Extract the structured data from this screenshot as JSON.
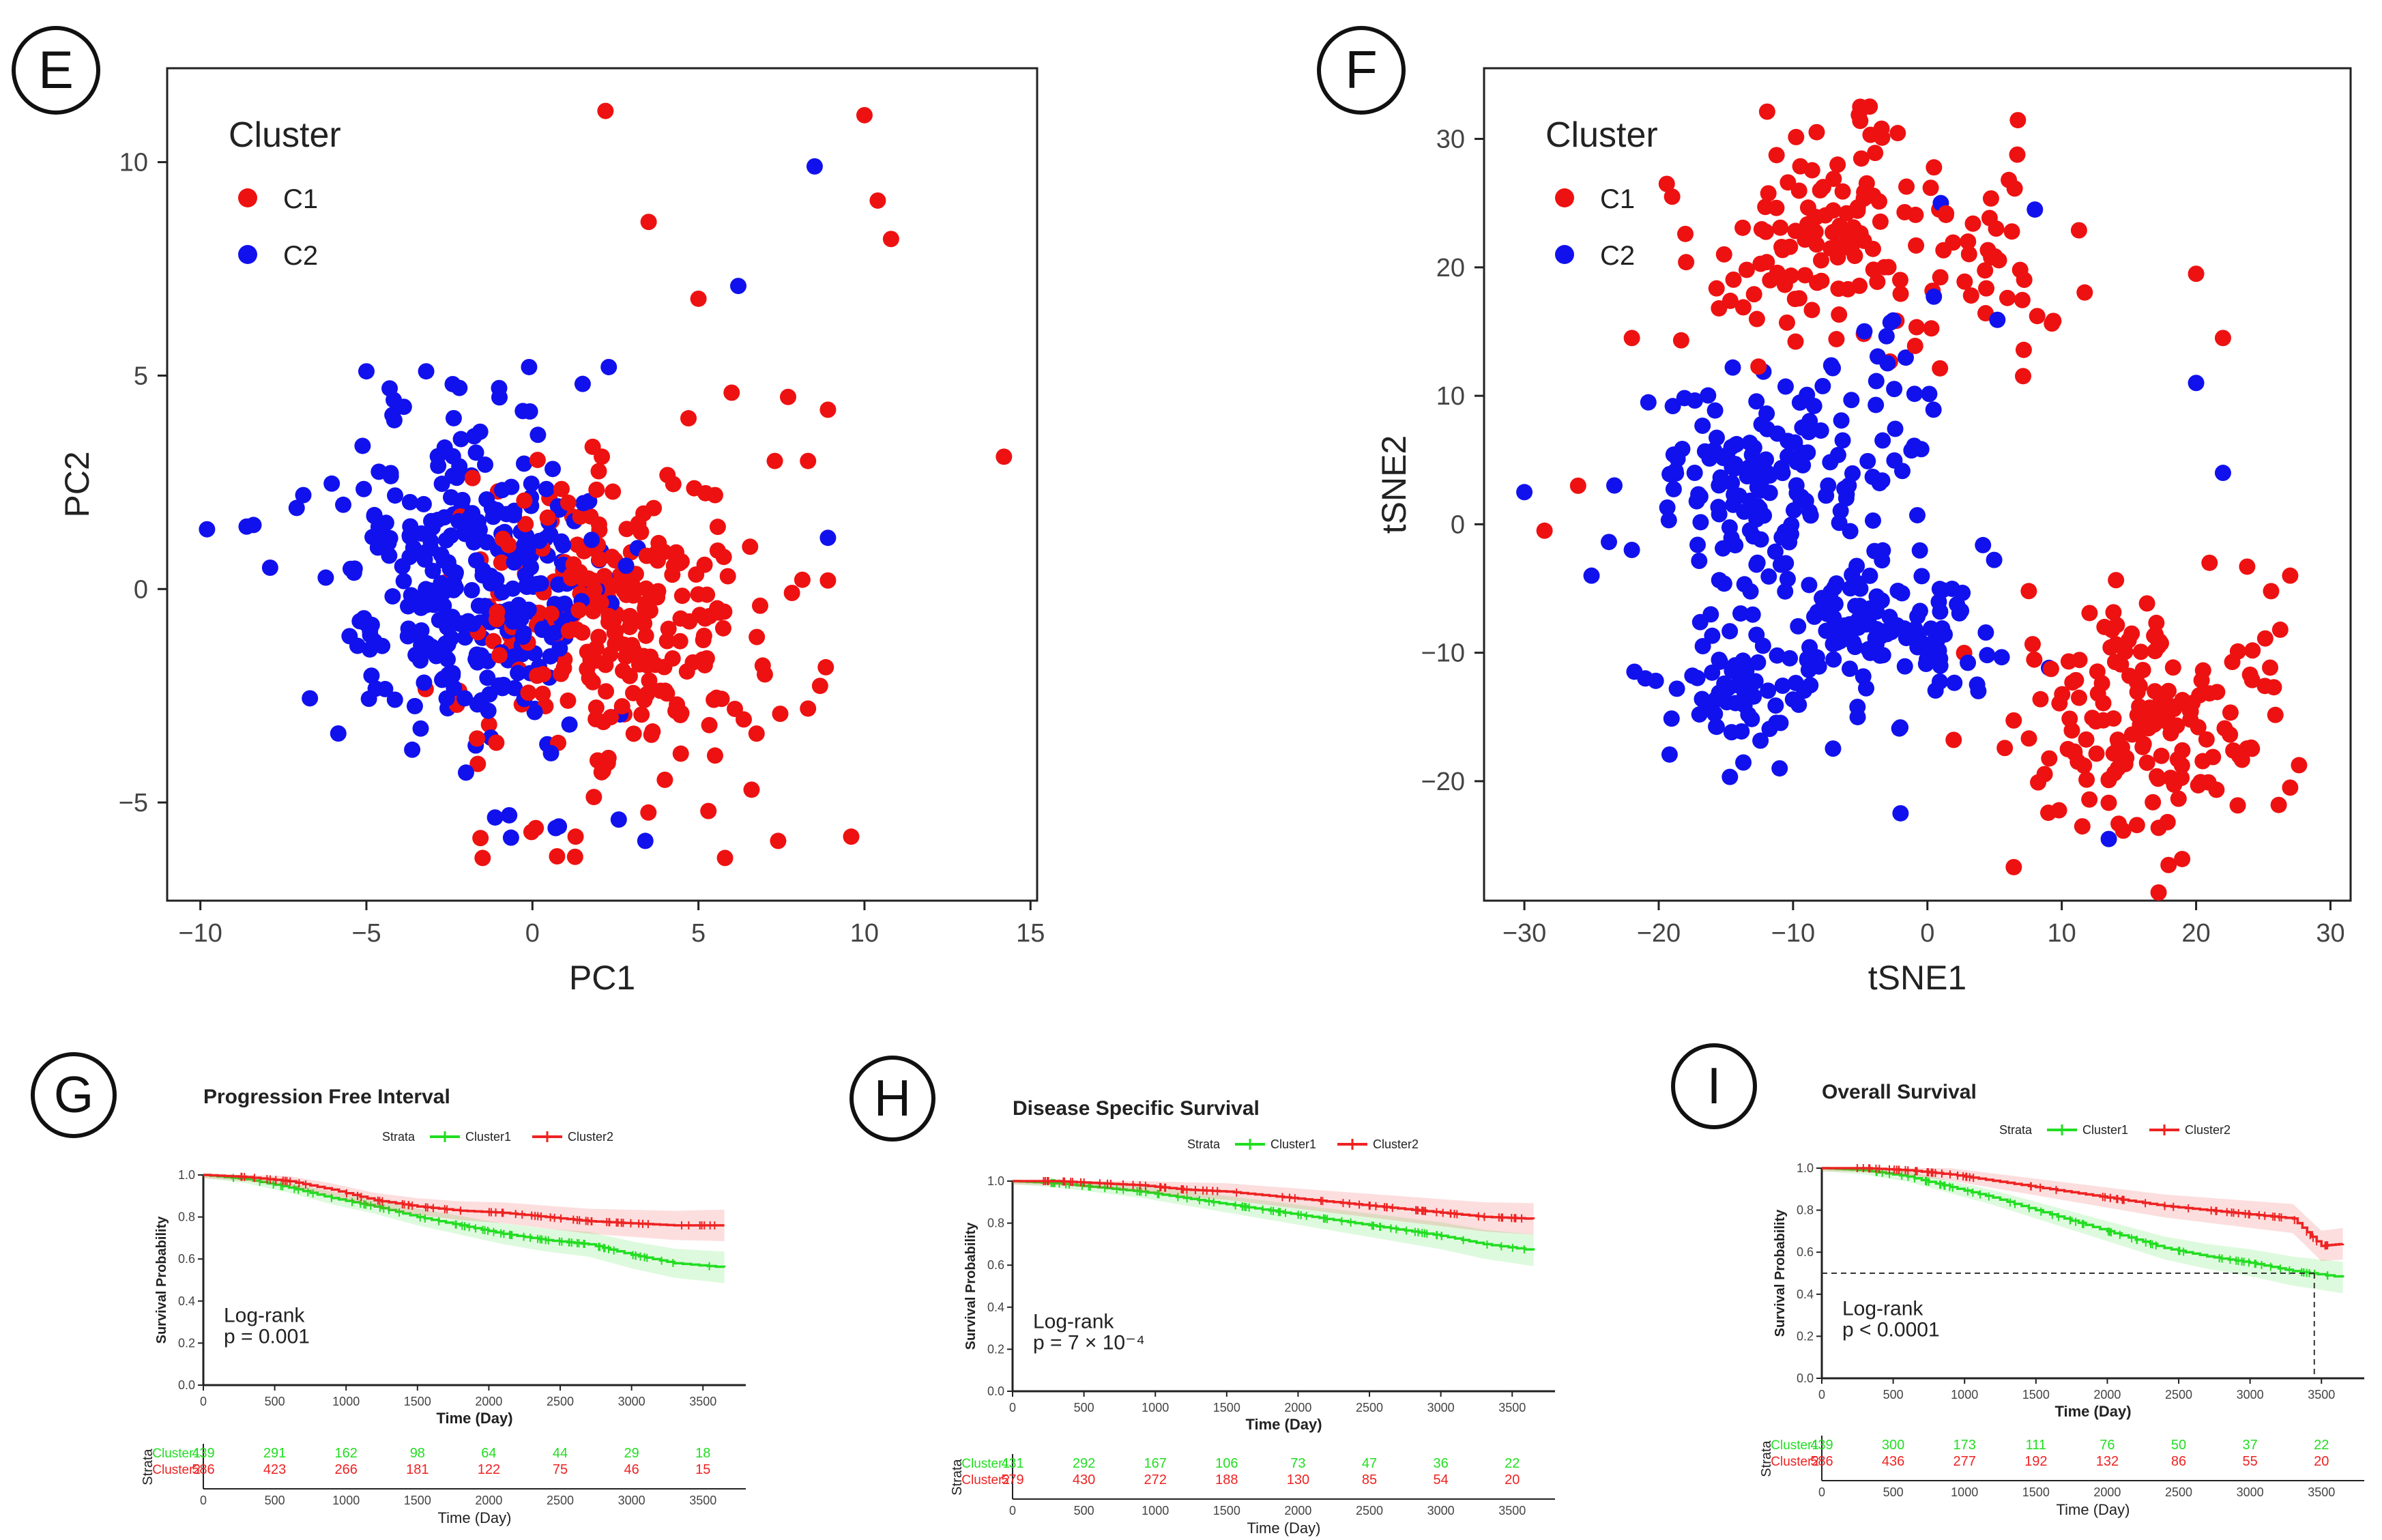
{
  "colors": {
    "red": "#ee1111",
    "blue": "#1111ee",
    "green": "#22dd22",
    "kmred": "#ee2222",
    "axis": "#444444",
    "frame": "#222222"
  },
  "panels": {
    "E": {
      "letter": "E"
    },
    "F": {
      "letter": "F"
    },
    "G": {
      "letter": "G"
    },
    "H": {
      "letter": "H"
    },
    "I": {
      "letter": "I"
    }
  },
  "chart_data": [
    {
      "id": "E",
      "type": "scatter",
      "title": "",
      "xlabel": "PC1",
      "ylabel": "PC2",
      "xlim": [
        -11,
        15.2
      ],
      "ylim": [
        -7.3,
        12.2
      ],
      "xticks": [
        -10,
        -5,
        0,
        5,
        10,
        15
      ],
      "yticks": [
        -5,
        0,
        5,
        10
      ],
      "grid": false,
      "legend": {
        "title": "Cluster",
        "position": "top-left",
        "entries": [
          "C1",
          "C2"
        ]
      },
      "series": [
        {
          "name": "C1",
          "color_key": "red",
          "n": 260,
          "center": [
            2.6,
            -0.7
          ],
          "spread": [
            2.2,
            1.8
          ],
          "points": [
            [
              2.2,
              11.2
            ],
            [
              10.0,
              11.1
            ],
            [
              10.4,
              9.1
            ],
            [
              10.8,
              8.2
            ],
            [
              3.5,
              8.6
            ],
            [
              5.0,
              6.8
            ],
            [
              14.2,
              3.1
            ],
            [
              6.0,
              4.6
            ],
            [
              7.7,
              4.5
            ],
            [
              8.9,
              4.2
            ],
            [
              8.3,
              3.0
            ],
            [
              4.7,
              4.0
            ],
            [
              5.5,
              2.2
            ],
            [
              7.3,
              3.0
            ],
            [
              8.9,
              0.2
            ],
            [
              8.3,
              -2.8
            ],
            [
              5.3,
              -5.2
            ],
            [
              5.8,
              -6.3
            ],
            [
              7.4,
              -5.9
            ],
            [
              9.6,
              -5.8
            ],
            [
              -1.5,
              -6.3
            ],
            [
              0.1,
              -5.6
            ],
            [
              1.3,
              -5.8
            ],
            [
              6.6,
              -4.7
            ],
            [
              7.0,
              -2.0
            ],
            [
              5.5,
              -3.9
            ]
          ]
        }
      ],
      "series2": [
        {
          "name": "C2",
          "color_key": "blue",
          "n": 330,
          "center": [
            -2.0,
            0.2
          ],
          "spread": [
            1.9,
            1.8
          ],
          "points": [
            [
              8.5,
              9.9
            ],
            [
              6.2,
              7.1
            ],
            [
              -9.8,
              1.4
            ],
            [
              -8.4,
              1.5
            ],
            [
              -7.9,
              0.5
            ],
            [
              -6.9,
              2.2
            ],
            [
              -7.1,
              1.9
            ],
            [
              -5.0,
              5.1
            ],
            [
              -4.3,
              4.7
            ],
            [
              -3.2,
              5.1
            ],
            [
              -2.4,
              4.8
            ],
            [
              -0.1,
              5.2
            ],
            [
              2.3,
              5.2
            ],
            [
              8.9,
              1.2
            ],
            [
              0.7,
              -5.6
            ],
            [
              3.4,
              -5.9
            ],
            [
              2.6,
              -5.4
            ],
            [
              -0.7,
              -5.3
            ],
            [
              -2.0,
              -4.3
            ]
          ]
        }
      ]
    },
    {
      "id": "F",
      "type": "scatter",
      "title": "",
      "xlabel": "tSNE1",
      "ylabel": "tSNE2",
      "xlim": [
        -33,
        31.5
      ],
      "ylim": [
        -29.3,
        35.5
      ],
      "xticks": [
        -30,
        -20,
        -10,
        0,
        10,
        20,
        30
      ],
      "yticks": [
        -20,
        -10,
        0,
        10,
        20,
        30
      ],
      "grid": false,
      "legend": {
        "title": "Cluster",
        "position": "top-left",
        "entries": [
          "C1",
          "C2"
        ]
      },
      "series": [
        {
          "name": "C1",
          "color_key": "red",
          "n": 330,
          "clusters": [
            [
              [
                -8,
                22
              ],
              [
                6,
                5
              ],
              120
            ],
            [
              [
                5,
                20
              ],
              [
                5,
                5
              ],
              40
            ],
            [
              [
                16,
                -15
              ],
              [
                6,
                6
              ],
              170
            ]
          ],
          "points": [
            [
              -5,
              32.5
            ],
            [
              -5,
              31.4
            ],
            [
              -19,
              25.5
            ],
            [
              -22,
              14.5
            ],
            [
              -26,
              3
            ],
            [
              -28.5,
              -0.5
            ],
            [
              27,
              -4
            ],
            [
              27,
              -20.5
            ],
            [
              21,
              -3
            ],
            [
              22,
              14.5
            ],
            [
              20,
              19.5
            ]
          ]
        }
      ],
      "series2": [
        {
          "name": "C2",
          "color_key": "blue",
          "n": 360,
          "clusters": [
            [
              [
                -12,
                3
              ],
              [
                6,
                5
              ],
              150
            ],
            [
              [
                -3,
                -8
              ],
              [
                5,
                4
              ],
              120
            ],
            [
              [
                -14,
                -13
              ],
              [
                4,
                3
              ],
              60
            ],
            [
              [
                -3,
                10
              ],
              [
                4,
                6
              ],
              30
            ]
          ],
          "points": [
            [
              -30,
              2.5
            ],
            [
              -22,
              -2
            ],
            [
              -25,
              -4
            ],
            [
              -21,
              -12
            ],
            [
              -11,
              -19
            ],
            [
              -2,
              -22.5
            ],
            [
              8,
              24.5
            ],
            [
              1,
              25
            ],
            [
              20,
              11
            ],
            [
              22,
              4
            ],
            [
              13.5,
              -24.5
            ]
          ]
        }
      ]
    },
    {
      "id": "G",
      "type": "line",
      "title": "Progression Free Interval",
      "xlabel": "Time (Day)",
      "ylabel": "Survival Probability",
      "xlim": [
        0,
        3800
      ],
      "ylim": [
        0,
        1
      ],
      "xticks": [
        0,
        500,
        1000,
        1500,
        2000,
        2500,
        3000,
        3500
      ],
      "yticks": [
        0.0,
        0.2,
        0.4,
        0.6,
        0.8,
        1.0
      ],
      "legend": {
        "title": "Strata",
        "entries": [
          "Cluster1",
          "Cluster2"
        ]
      },
      "annotation": {
        "line1": "Log-rank",
        "line2": "p = 0.001"
      },
      "series": [
        {
          "name": "Cluster1",
          "color_key": "green",
          "x": [
            0,
            300,
            600,
            900,
            1200,
            1500,
            1800,
            2100,
            2400,
            2700,
            3000,
            3300,
            3650
          ],
          "y": [
            1.0,
            0.98,
            0.94,
            0.89,
            0.85,
            0.8,
            0.76,
            0.72,
            0.69,
            0.67,
            0.62,
            0.58,
            0.56
          ]
        },
        {
          "name": "Cluster2",
          "color_key": "kmred",
          "x": [
            0,
            300,
            600,
            900,
            1200,
            1500,
            1800,
            2100,
            2400,
            2700,
            3000,
            3300,
            3650
          ],
          "y": [
            1.0,
            0.99,
            0.97,
            0.93,
            0.88,
            0.85,
            0.83,
            0.82,
            0.8,
            0.78,
            0.77,
            0.76,
            0.76
          ]
        }
      ],
      "risk_table": {
        "label": "Strata",
        "xlabel": "Time (Day)",
        "times": [
          0,
          500,
          1000,
          1500,
          2000,
          2500,
          3000,
          3500
        ],
        "rows": [
          {
            "name": "Cluster1",
            "color_key": "green",
            "values": [
              "439",
              "291",
              "162",
              "98",
              "64",
              "44",
              "29",
              "18"
            ]
          },
          {
            "name": "Cluster2",
            "color_key": "kmred",
            "values": [
              "586",
              "423",
              "266",
              "181",
              "122",
              "75",
              "46",
              "15"
            ]
          }
        ]
      }
    },
    {
      "id": "H",
      "type": "line",
      "title": "Disease Specific Survival",
      "xlabel": "Time (Day)",
      "ylabel": "Survival Probability",
      "xlim": [
        0,
        3800
      ],
      "ylim": [
        0,
        1
      ],
      "xticks": [
        0,
        500,
        1000,
        1500,
        2000,
        2500,
        3000,
        3500
      ],
      "yticks": [
        0.0,
        0.2,
        0.4,
        0.6,
        0.8,
        1.0
      ],
      "legend": {
        "title": "Strata",
        "entries": [
          "Cluster1",
          "Cluster2"
        ]
      },
      "annotation": {
        "line1": "Log-rank",
        "line2": "p = 7 × 10⁻⁴"
      },
      "series": [
        {
          "name": "Cluster1",
          "color_key": "green",
          "x": [
            0,
            300,
            600,
            900,
            1200,
            1500,
            1800,
            2100,
            2400,
            2700,
            3000,
            3300,
            3650
          ],
          "y": [
            1.0,
            0.99,
            0.97,
            0.95,
            0.92,
            0.89,
            0.86,
            0.83,
            0.8,
            0.77,
            0.74,
            0.7,
            0.67
          ]
        },
        {
          "name": "Cluster2",
          "color_key": "kmred",
          "x": [
            0,
            300,
            600,
            900,
            1200,
            1500,
            1800,
            2100,
            2400,
            2700,
            3000,
            3300,
            3650
          ],
          "y": [
            1.0,
            1.0,
            0.99,
            0.98,
            0.96,
            0.95,
            0.93,
            0.91,
            0.89,
            0.87,
            0.85,
            0.83,
            0.82
          ]
        }
      ],
      "risk_table": {
        "label": "Strata",
        "xlabel": "Time (Day)",
        "times": [
          0,
          500,
          1000,
          1500,
          2000,
          2500,
          3000,
          3500
        ],
        "rows": [
          {
            "name": "Cluster1",
            "color_key": "green",
            "values": [
              "431",
              "292",
              "167",
              "106",
              "73",
              "47",
              "36",
              "22"
            ]
          },
          {
            "name": "Cluster2",
            "color_key": "kmred",
            "values": [
              "579",
              "430",
              "272",
              "188",
              "130",
              "85",
              "54",
              "20"
            ]
          }
        ]
      }
    },
    {
      "id": "I",
      "type": "line",
      "title": "Overall Survival",
      "xlabel": "Time (Day)",
      "ylabel": "Survival Probability",
      "xlim": [
        0,
        3800
      ],
      "ylim": [
        0,
        1
      ],
      "xticks": [
        0,
        500,
        1000,
        1500,
        2000,
        2500,
        3000,
        3500
      ],
      "yticks": [
        0.0,
        0.2,
        0.4,
        0.6,
        0.8,
        1.0
      ],
      "legend": {
        "title": "Strata",
        "entries": [
          "Cluster1",
          "Cluster2"
        ]
      },
      "annotation": {
        "line1": "Log-rank",
        "line2": "p < 0.0001"
      },
      "median_line": {
        "y": 0.5,
        "x": 3450
      },
      "series": [
        {
          "name": "Cluster1",
          "color_key": "green",
          "x": [
            0,
            300,
            600,
            900,
            1200,
            1500,
            1800,
            2100,
            2400,
            2700,
            3000,
            3300,
            3650
          ],
          "y": [
            1.0,
            0.99,
            0.96,
            0.91,
            0.86,
            0.8,
            0.74,
            0.68,
            0.62,
            0.58,
            0.55,
            0.51,
            0.48
          ]
        },
        {
          "name": "Cluster2",
          "color_key": "kmred",
          "x": [
            0,
            300,
            600,
            900,
            1200,
            1500,
            1800,
            2100,
            2400,
            2700,
            3000,
            3300,
            3500,
            3650
          ],
          "y": [
            1.0,
            1.0,
            0.99,
            0.97,
            0.94,
            0.91,
            0.88,
            0.85,
            0.82,
            0.8,
            0.78,
            0.76,
            0.63,
            0.64
          ]
        }
      ],
      "risk_table": {
        "label": "Strata",
        "xlabel": "Time (Day)",
        "times": [
          0,
          500,
          1000,
          1500,
          2000,
          2500,
          3000,
          3500
        ],
        "rows": [
          {
            "name": "Cluster1",
            "color_key": "green",
            "values": [
              "439",
              "300",
              "173",
              "111",
              "76",
              "50",
              "37",
              "22"
            ]
          },
          {
            "name": "Cluster2",
            "color_key": "kmred",
            "values": [
              "586",
              "436",
              "277",
              "192",
              "132",
              "86",
              "55",
              "20"
            ]
          }
        ]
      }
    }
  ]
}
